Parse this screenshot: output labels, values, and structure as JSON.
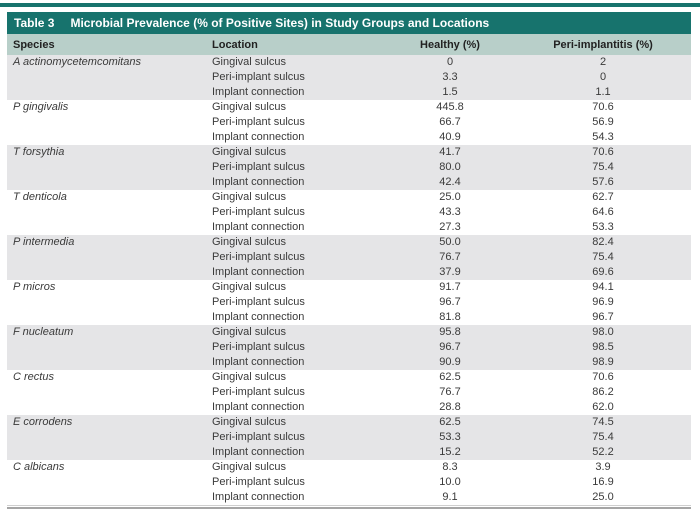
{
  "colors": {
    "teal": "#17736d",
    "header_bg": "#b8cfc9",
    "band_gray": "#e5e5e7",
    "rule_gray": "#a5a5a5"
  },
  "table": {
    "title_label": "Table 3",
    "title": "Microbial Prevalence (% of Positive Sites) in Study Groups and Locations",
    "columns": [
      "Species",
      "Location",
      "Healthy (%)",
      "Peri-implantitis (%)"
    ],
    "groups": [
      {
        "species": "A actinomycetemcomitans",
        "rows": [
          {
            "location": "Gingival sulcus",
            "healthy": "0",
            "peri": "2"
          },
          {
            "location": "Peri-implant sulcus",
            "healthy": "3.3",
            "peri": "0"
          },
          {
            "location": "Implant connection",
            "healthy": "1.5",
            "peri": "1.1"
          }
        ]
      },
      {
        "species": "P gingivalis",
        "rows": [
          {
            "location": "Gingival sulcus",
            "healthy": "445.8",
            "peri": "70.6"
          },
          {
            "location": "Peri-implant sulcus",
            "healthy": "66.7",
            "peri": "56.9"
          },
          {
            "location": "Implant connection",
            "healthy": "40.9",
            "peri": "54.3"
          }
        ]
      },
      {
        "species": "T forsythia",
        "rows": [
          {
            "location": "Gingival sulcus",
            "healthy": "41.7",
            "peri": "70.6"
          },
          {
            "location": "Peri-implant sulcus",
            "healthy": "80.0",
            "peri": "75.4"
          },
          {
            "location": "Implant connection",
            "healthy": "42.4",
            "peri": "57.6"
          }
        ]
      },
      {
        "species": "T denticola",
        "rows": [
          {
            "location": "Gingival sulcus",
            "healthy": "25.0",
            "peri": "62.7"
          },
          {
            "location": "Peri-implant sulcus",
            "healthy": "43.3",
            "peri": "64.6"
          },
          {
            "location": "Implant connection",
            "healthy": "27.3",
            "peri": "53.3"
          }
        ]
      },
      {
        "species": "P intermedia",
        "rows": [
          {
            "location": "Gingival sulcus",
            "healthy": "50.0",
            "peri": "82.4"
          },
          {
            "location": "Peri-implant sulcus",
            "healthy": "76.7",
            "peri": "75.4"
          },
          {
            "location": "Implant connection",
            "healthy": "37.9",
            "peri": "69.6"
          }
        ]
      },
      {
        "species": "P micros",
        "rows": [
          {
            "location": "Gingival sulcus",
            "healthy": "91.7",
            "peri": "94.1"
          },
          {
            "location": "Peri-implant sulcus",
            "healthy": "96.7",
            "peri": "96.9"
          },
          {
            "location": "Implant connection",
            "healthy": "81.8",
            "peri": "96.7"
          }
        ]
      },
      {
        "species": "F nucleatum",
        "rows": [
          {
            "location": "Gingival sulcus",
            "healthy": "95.8",
            "peri": "98.0"
          },
          {
            "location": "Peri-implant sulcus",
            "healthy": "96.7",
            "peri": "98.5"
          },
          {
            "location": "Implant connection",
            "healthy": "90.9",
            "peri": "98.9"
          }
        ]
      },
      {
        "species": "C rectus",
        "rows": [
          {
            "location": "Gingival sulcus",
            "healthy": "62.5",
            "peri": "70.6"
          },
          {
            "location": "Peri-implant sulcus",
            "healthy": "76.7",
            "peri": "86.2"
          },
          {
            "location": "Implant connection",
            "healthy": "28.8",
            "peri": "62.0"
          }
        ]
      },
      {
        "species": "E corrodens",
        "rows": [
          {
            "location": "Gingival sulcus",
            "healthy": "62.5",
            "peri": "74.5"
          },
          {
            "location": "Peri-implant sulcus",
            "healthy": "53.3",
            "peri": "75.4"
          },
          {
            "location": "Implant connection",
            "healthy": "15.2",
            "peri": "52.2"
          }
        ]
      },
      {
        "species": "C albicans",
        "rows": [
          {
            "location": "Gingival sulcus",
            "healthy": "8.3",
            "peri": "3.9"
          },
          {
            "location": "Peri-implant sulcus",
            "healthy": "10.0",
            "peri": "16.9"
          },
          {
            "location": "Implant connection",
            "healthy": "9.1",
            "peri": "25.0"
          }
        ]
      }
    ]
  }
}
